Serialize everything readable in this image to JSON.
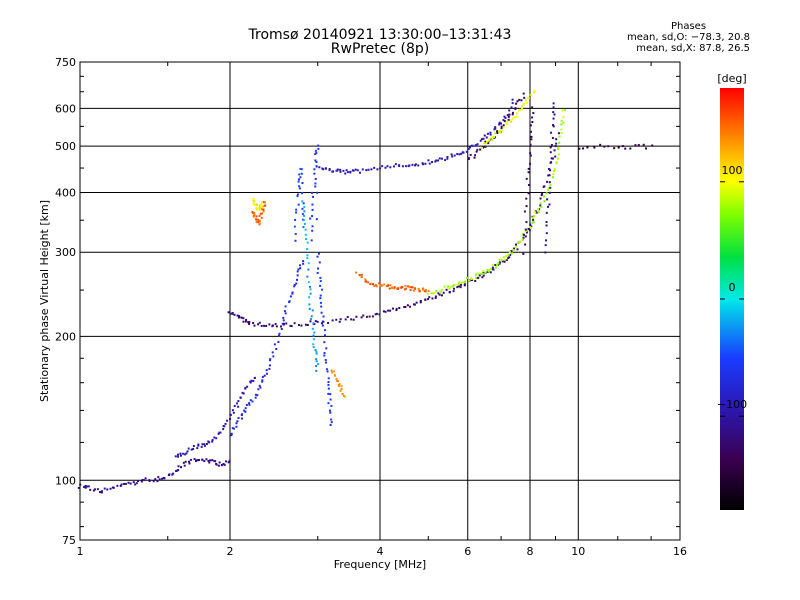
{
  "header": {
    "title_line1": "Tromsø 20140921 13:30:00–13:31:43",
    "title_line2": "RwPretec (8p)"
  },
  "stats": {
    "heading": "Phases",
    "line_o": "mean, sd,O: −78.3, 20.8",
    "line_x": "mean, sd,X:  87.8, 26.5"
  },
  "chart_data": {
    "type": "scatter",
    "title": "Tromsø 20140921 13:30:00–13:31:43",
    "subtitle": "RwPretec (8p)",
    "xlabel": "Frequency [MHz]",
    "ylabel": "Stationary phase Virtual Height [km]",
    "x_scale": "log",
    "y_scale": "log",
    "xlim": [
      1,
      16
    ],
    "ylim": [
      75,
      750
    ],
    "x_ticks": [
      {
        "value": 1,
        "label": "1"
      },
      {
        "value": 2,
        "label": "2"
      },
      {
        "value": 4,
        "label": "4"
      },
      {
        "value": 6,
        "label": "6"
      },
      {
        "value": 8,
        "label": "8"
      },
      {
        "value": 10,
        "label": "10"
      },
      {
        "value": 16,
        "label": "16"
      }
    ],
    "y_ticks": [
      {
        "value": 75,
        "label": "75"
      },
      {
        "value": 100,
        "label": "100"
      },
      {
        "value": 200,
        "label": "200"
      },
      {
        "value": 300,
        "label": "300"
      },
      {
        "value": 400,
        "label": "400"
      },
      {
        "value": 500,
        "label": "500"
      },
      {
        "value": 600,
        "label": "600"
      },
      {
        "value": 750,
        "label": "750"
      }
    ],
    "grid": true,
    "colorbar": {
      "label": "[deg]",
      "range": [
        -180,
        180
      ],
      "ticks": [
        {
          "value": 100,
          "label": "100"
        },
        {
          "value": 0,
          "label": "0"
        },
        {
          "value": -100,
          "label": "−100"
        }
      ]
    },
    "traces": [
      {
        "name": "",
        "phase": -110,
        "points": [
          [
            1.0,
            97
          ],
          [
            1.03,
            97
          ],
          [
            1.06,
            96
          ],
          [
            1.1,
            95
          ],
          [
            1.15,
            96
          ],
          [
            1.2,
            97
          ],
          [
            1.25,
            98
          ],
          [
            1.3,
            99
          ],
          [
            1.35,
            100
          ],
          [
            1.4,
            100
          ],
          [
            1.45,
            101
          ],
          [
            1.5,
            102
          ],
          [
            1.55,
            104
          ],
          [
            1.6,
            107
          ],
          [
            1.65,
            109
          ],
          [
            1.7,
            110
          ],
          [
            1.75,
            111
          ],
          [
            1.8,
            110
          ],
          [
            1.85,
            109
          ],
          [
            1.9,
            108
          ],
          [
            1.95,
            108
          ],
          [
            2.0,
            110
          ]
        ]
      },
      {
        "name": "",
        "phase": -95,
        "points": [
          [
            1.55,
            112
          ],
          [
            1.6,
            113
          ],
          [
            1.65,
            115
          ],
          [
            1.7,
            117
          ],
          [
            1.75,
            118
          ],
          [
            1.8,
            120
          ],
          [
            1.85,
            122
          ],
          [
            1.9,
            125
          ],
          [
            1.95,
            130
          ],
          [
            2.0,
            136
          ],
          [
            2.05,
            142
          ],
          [
            2.1,
            148
          ],
          [
            2.15,
            155
          ],
          [
            2.2,
            160
          ],
          [
            2.25,
            165
          ]
        ]
      },
      {
        "name": "",
        "phase": -70,
        "points": [
          [
            2.0,
            125
          ],
          [
            2.05,
            130
          ],
          [
            2.1,
            135
          ],
          [
            2.15,
            140
          ],
          [
            2.2,
            145
          ],
          [
            2.25,
            150
          ],
          [
            2.3,
            158
          ],
          [
            2.35,
            165
          ],
          [
            2.4,
            175
          ],
          [
            2.45,
            185
          ],
          [
            2.5,
            200
          ],
          [
            2.55,
            215
          ],
          [
            2.6,
            230
          ],
          [
            2.65,
            245
          ],
          [
            2.7,
            260
          ],
          [
            2.75,
            275
          ],
          [
            2.8,
            290
          ]
        ]
      },
      {
        "name": "",
        "phase": -120,
        "points": [
          [
            2.0,
            225
          ],
          [
            2.05,
            222
          ],
          [
            2.1,
            218
          ],
          [
            2.15,
            215
          ],
          [
            2.2,
            213
          ],
          [
            2.3,
            212
          ],
          [
            2.4,
            211
          ],
          [
            2.5,
            211
          ],
          [
            2.6,
            211
          ],
          [
            2.75,
            212
          ],
          [
            2.9,
            213
          ],
          [
            3.0,
            214
          ],
          [
            3.2,
            215
          ],
          [
            3.4,
            217
          ],
          [
            3.6,
            219
          ],
          [
            3.8,
            221
          ],
          [
            4.0,
            223
          ],
          [
            4.2,
            226
          ],
          [
            4.4,
            229
          ],
          [
            4.6,
            232
          ],
          [
            4.8,
            235
          ],
          [
            5.0,
            239
          ],
          [
            5.2,
            243
          ],
          [
            5.4,
            247
          ],
          [
            5.6,
            251
          ],
          [
            5.8,
            255
          ],
          [
            6.0,
            259
          ],
          [
            6.2,
            263
          ],
          [
            6.4,
            268
          ],
          [
            6.6,
            273
          ],
          [
            6.8,
            278
          ],
          [
            7.0,
            285
          ],
          [
            7.2,
            293
          ],
          [
            7.4,
            302
          ],
          [
            7.6,
            312
          ],
          [
            7.8,
            325
          ],
          [
            8.0,
            340
          ],
          [
            8.2,
            360
          ],
          [
            8.4,
            385
          ],
          [
            8.6,
            415
          ],
          [
            8.8,
            450
          ],
          [
            9.0,
            490
          ],
          [
            9.1,
            530
          ]
        ]
      },
      {
        "name": "",
        "phase": 80,
        "points": [
          [
            5.0,
            245
          ],
          [
            5.2,
            248
          ],
          [
            5.4,
            252
          ],
          [
            5.6,
            256
          ],
          [
            5.8,
            260
          ],
          [
            6.0,
            263
          ],
          [
            6.2,
            267
          ],
          [
            6.4,
            272
          ],
          [
            6.6,
            276
          ],
          [
            6.8,
            281
          ],
          [
            7.0,
            287
          ],
          [
            7.2,
            294
          ],
          [
            7.4,
            303
          ],
          [
            7.6,
            314
          ],
          [
            7.8,
            326
          ],
          [
            8.0,
            340
          ],
          [
            8.2,
            356
          ],
          [
            8.4,
            374
          ],
          [
            8.6,
            395
          ],
          [
            8.8,
            420
          ],
          [
            9.0,
            450
          ],
          [
            9.1,
            480
          ],
          [
            9.2,
            520
          ],
          [
            9.3,
            560
          ],
          [
            9.35,
            600
          ]
        ]
      },
      {
        "name": "",
        "phase": 150,
        "points": [
          [
            3.6,
            272
          ],
          [
            3.7,
            265
          ],
          [
            3.8,
            260
          ],
          [
            3.9,
            257
          ],
          [
            4.0,
            256
          ],
          [
            4.1,
            255
          ],
          [
            4.2,
            254
          ],
          [
            4.3,
            254
          ],
          [
            4.4,
            253
          ],
          [
            4.5,
            253
          ],
          [
            4.6,
            252
          ],
          [
            4.7,
            251
          ],
          [
            4.8,
            250
          ],
          [
            4.9,
            249
          ],
          [
            5.0,
            248
          ]
        ]
      },
      {
        "name": "",
        "phase": -95,
        "points": [
          [
            3.0,
            455
          ],
          [
            3.1,
            448
          ],
          [
            3.2,
            445
          ],
          [
            3.3,
            443
          ],
          [
            3.4,
            442
          ],
          [
            3.5,
            442
          ],
          [
            3.6,
            443
          ],
          [
            3.8,
            446
          ],
          [
            4.0,
            450
          ],
          [
            4.2,
            453
          ],
          [
            4.4,
            456
          ],
          [
            4.6,
            458
          ],
          [
            4.8,
            460
          ],
          [
            5.0,
            463
          ],
          [
            5.2,
            467
          ],
          [
            5.4,
            472
          ],
          [
            5.6,
            478
          ],
          [
            5.8,
            485
          ],
          [
            6.0,
            493
          ],
          [
            6.2,
            503
          ],
          [
            6.4,
            515
          ],
          [
            6.6,
            528
          ],
          [
            6.8,
            543
          ],
          [
            7.0,
            560
          ],
          [
            7.2,
            585
          ],
          [
            7.4,
            620
          ]
        ]
      },
      {
        "name": "",
        "phase": -130,
        "points": [
          [
            6.0,
            470
          ],
          [
            6.2,
            480
          ],
          [
            6.4,
            495
          ],
          [
            6.6,
            510
          ],
          [
            6.8,
            525
          ],
          [
            7.0,
            545
          ],
          [
            7.2,
            565
          ],
          [
            7.4,
            590
          ],
          [
            7.6,
            615
          ],
          [
            7.8,
            640
          ]
        ]
      },
      {
        "name": "",
        "phase": 95,
        "points": [
          [
            6.4,
            500
          ],
          [
            6.6,
            512
          ],
          [
            6.8,
            525
          ],
          [
            7.0,
            540
          ],
          [
            7.2,
            555
          ],
          [
            7.4,
            570
          ],
          [
            7.6,
            590
          ],
          [
            7.8,
            610
          ],
          [
            8.0,
            635
          ],
          [
            8.2,
            650
          ]
        ]
      },
      {
        "name": "",
        "phase": -130,
        "points": [
          [
            7.8,
            300
          ],
          [
            7.85,
            350
          ],
          [
            7.9,
            400
          ],
          [
            7.95,
            450
          ],
          [
            8.0,
            500
          ],
          [
            8.05,
            550
          ],
          [
            8.1,
            600
          ]
        ]
      },
      {
        "name": "",
        "phase": -110,
        "points": [
          [
            8.6,
            300
          ],
          [
            8.65,
            340
          ],
          [
            8.7,
            380
          ],
          [
            8.75,
            420
          ],
          [
            8.8,
            470
          ],
          [
            8.85,
            520
          ],
          [
            8.9,
            570
          ],
          [
            8.95,
            610
          ]
        ]
      },
      {
        "name": "",
        "phase": -60,
        "points": [
          [
            2.9,
            320
          ],
          [
            2.92,
            360
          ],
          [
            2.94,
            400
          ],
          [
            2.96,
            440
          ],
          [
            2.98,
            480
          ],
          [
            3.0,
            500
          ],
          [
            3.0,
            300
          ],
          [
            3.02,
            270
          ],
          [
            3.04,
            250
          ],
          [
            3.06,
            230
          ],
          [
            3.08,
            210
          ],
          [
            3.1,
            190
          ],
          [
            3.12,
            175
          ],
          [
            3.14,
            160
          ],
          [
            3.16,
            150
          ],
          [
            3.18,
            140
          ],
          [
            3.2,
            130
          ]
        ]
      },
      {
        "name": "",
        "phase": -50,
        "points": [
          [
            2.7,
            320
          ],
          [
            2.72,
            360
          ],
          [
            2.74,
            400
          ],
          [
            2.76,
            430
          ],
          [
            2.78,
            450
          ],
          [
            2.8,
            380
          ],
          [
            2.82,
            340
          ]
        ]
      },
      {
        "name": "",
        "phase": -20,
        "points": [
          [
            2.8,
            380
          ],
          [
            2.82,
            350
          ],
          [
            2.84,
            320
          ],
          [
            2.86,
            290
          ],
          [
            2.88,
            260
          ],
          [
            2.9,
            240
          ],
          [
            2.92,
            220
          ],
          [
            2.94,
            205
          ],
          [
            2.96,
            190
          ],
          [
            2.98,
            180
          ],
          [
            3.0,
            170
          ]
        ]
      },
      {
        "name": "",
        "phase": 150,
        "points": [
          [
            2.22,
            365
          ],
          [
            2.24,
            358
          ],
          [
            2.26,
            350
          ],
          [
            2.28,
            345
          ],
          [
            2.3,
            355
          ],
          [
            2.32,
            365
          ],
          [
            2.34,
            375
          ],
          [
            2.36,
            385
          ]
        ]
      },
      {
        "name": "",
        "phase": 100,
        "points": [
          [
            2.22,
            390
          ],
          [
            2.24,
            380
          ],
          [
            2.26,
            375
          ],
          [
            2.28,
            370
          ],
          [
            2.3,
            372
          ],
          [
            2.32,
            378
          ]
        ]
      },
      {
        "name": "",
        "phase": 130,
        "points": [
          [
            3.2,
            170
          ],
          [
            3.25,
            165
          ],
          [
            3.3,
            160
          ],
          [
            3.35,
            155
          ],
          [
            3.4,
            150
          ]
        ]
      },
      {
        "name": "",
        "phase": -140,
        "points": [
          [
            10.0,
            490
          ],
          [
            11.0,
            500
          ],
          [
            12.0,
            495
          ],
          [
            13.0,
            500
          ],
          [
            14.0,
            498
          ]
        ]
      }
    ]
  }
}
